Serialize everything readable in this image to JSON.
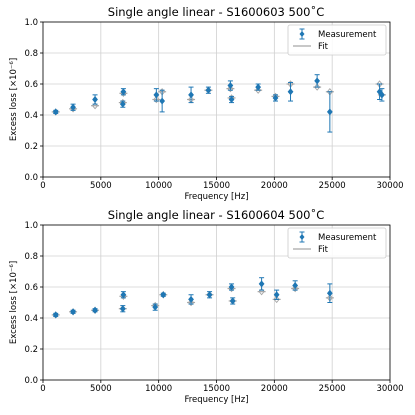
{
  "chart_data": [
    {
      "type": "scatter",
      "title": "Single angle linear - S1600603 500$^\\circ$C",
      "title_display": "Single angle linear - S1600603 500˚C",
      "xlabel": "Frequency [Hz]",
      "ylabel": "Excess loss [×10⁻⁶]",
      "xlim": [
        0,
        30000
      ],
      "ylim": [
        0.0,
        1.0
      ],
      "xticks": [
        0,
        5000,
        10000,
        15000,
        20000,
        25000,
        30000
      ],
      "yticks": [
        0.0,
        0.2,
        0.4,
        0.6,
        0.8,
        1.0
      ],
      "xtick_labels": [
        "0",
        "5000",
        "10000",
        "15000",
        "20000",
        "25000",
        "30000"
      ],
      "ytick_labels": [
        "0.0",
        "0.2",
        "0.4",
        "0.6",
        "0.8",
        "1.0"
      ],
      "grid": true,
      "legend_position": "top-right",
      "legend": [
        "Measurement",
        "Fit"
      ],
      "colors": {
        "measurement": "#1f77b4",
        "fit": "#a6a6a6"
      },
      "series": [
        {
          "name": "Measurement",
          "points": [
            {
              "x": 1100,
              "y": 0.42,
              "err": 0.01
            },
            {
              "x": 2600,
              "y": 0.45,
              "err": 0.02
            },
            {
              "x": 4500,
              "y": 0.5,
              "err": 0.03
            },
            {
              "x": 6900,
              "y": 0.47,
              "err": 0.02
            },
            {
              "x": 6950,
              "y": 0.55,
              "err": 0.02
            },
            {
              "x": 9800,
              "y": 0.53,
              "err": 0.04
            },
            {
              "x": 10300,
              "y": 0.49,
              "err": 0.07
            },
            {
              "x": 12800,
              "y": 0.53,
              "err": 0.05
            },
            {
              "x": 14300,
              "y": 0.56,
              "err": 0.02
            },
            {
              "x": 16200,
              "y": 0.59,
              "err": 0.03
            },
            {
              "x": 16300,
              "y": 0.5,
              "err": 0.02
            },
            {
              "x": 18600,
              "y": 0.58,
              "err": 0.02
            },
            {
              "x": 20100,
              "y": 0.51,
              "err": 0.02
            },
            {
              "x": 21400,
              "y": 0.55,
              "err": 0.06
            },
            {
              "x": 23700,
              "y": 0.62,
              "err": 0.04
            },
            {
              "x": 24800,
              "y": 0.42,
              "err": 0.13
            },
            {
              "x": 29100,
              "y": 0.55,
              "err": 0.05
            },
            {
              "x": 29300,
              "y": 0.53,
              "err": 0.04
            }
          ]
        },
        {
          "name": "Fit",
          "points": [
            {
              "x": 1100,
              "y": 0.42
            },
            {
              "x": 2600,
              "y": 0.44
            },
            {
              "x": 4500,
              "y": 0.46
            },
            {
              "x": 6900,
              "y": 0.48
            },
            {
              "x": 6950,
              "y": 0.54
            },
            {
              "x": 9800,
              "y": 0.5
            },
            {
              "x": 10300,
              "y": 0.55
            },
            {
              "x": 12800,
              "y": 0.5
            },
            {
              "x": 14300,
              "y": 0.56
            },
            {
              "x": 16200,
              "y": 0.57
            },
            {
              "x": 16300,
              "y": 0.51
            },
            {
              "x": 18600,
              "y": 0.56
            },
            {
              "x": 20100,
              "y": 0.52
            },
            {
              "x": 21400,
              "y": 0.6
            },
            {
              "x": 23700,
              "y": 0.58
            },
            {
              "x": 24800,
              "y": 0.55
            },
            {
              "x": 29100,
              "y": 0.6
            },
            {
              "x": 29300,
              "y": 0.53
            }
          ]
        }
      ]
    },
    {
      "type": "scatter",
      "title": "Single angle linear - S1600604 500$^\\circ$C",
      "title_display": "Single angle linear - S1600604 500˚C",
      "xlabel": "Frequency [Hz]",
      "ylabel": "Excess loss [×10⁻⁶]",
      "xlim": [
        0,
        30000
      ],
      "ylim": [
        0.0,
        1.0
      ],
      "xticks": [
        0,
        5000,
        10000,
        15000,
        20000,
        25000,
        30000
      ],
      "yticks": [
        0.0,
        0.2,
        0.4,
        0.6,
        0.8,
        1.0
      ],
      "xtick_labels": [
        "0",
        "5000",
        "10000",
        "15000",
        "20000",
        "25000",
        "30000"
      ],
      "ytick_labels": [
        "0.0",
        "0.2",
        "0.4",
        "0.6",
        "0.8",
        "1.0"
      ],
      "grid": true,
      "legend_position": "top-right",
      "legend": [
        "Measurement",
        "Fit"
      ],
      "colors": {
        "measurement": "#1f77b4",
        "fit": "#a6a6a6"
      },
      "series": [
        {
          "name": "Measurement",
          "points": [
            {
              "x": 1100,
              "y": 0.42,
              "err": 0.01
            },
            {
              "x": 2600,
              "y": 0.44,
              "err": 0.01
            },
            {
              "x": 4500,
              "y": 0.45,
              "err": 0.01
            },
            {
              "x": 6900,
              "y": 0.46,
              "err": 0.02
            },
            {
              "x": 6950,
              "y": 0.55,
              "err": 0.02
            },
            {
              "x": 9700,
              "y": 0.47,
              "err": 0.02
            },
            {
              "x": 10400,
              "y": 0.55,
              "err": 0.01
            },
            {
              "x": 12800,
              "y": 0.52,
              "err": 0.03
            },
            {
              "x": 14400,
              "y": 0.55,
              "err": 0.02
            },
            {
              "x": 16300,
              "y": 0.6,
              "err": 0.02
            },
            {
              "x": 16400,
              "y": 0.51,
              "err": 0.02
            },
            {
              "x": 18900,
              "y": 0.62,
              "err": 0.04
            },
            {
              "x": 20200,
              "y": 0.55,
              "err": 0.03
            },
            {
              "x": 21800,
              "y": 0.61,
              "err": 0.03
            },
            {
              "x": 24800,
              "y": 0.56,
              "err": 0.06
            }
          ]
        },
        {
          "name": "Fit",
          "points": [
            {
              "x": 1100,
              "y": 0.42
            },
            {
              "x": 2600,
              "y": 0.44
            },
            {
              "x": 4500,
              "y": 0.45
            },
            {
              "x": 6900,
              "y": 0.46
            },
            {
              "x": 6950,
              "y": 0.54
            },
            {
              "x": 9700,
              "y": 0.48
            },
            {
              "x": 10400,
              "y": 0.55
            },
            {
              "x": 12800,
              "y": 0.5
            },
            {
              "x": 14400,
              "y": 0.55
            },
            {
              "x": 16300,
              "y": 0.59
            },
            {
              "x": 16400,
              "y": 0.51
            },
            {
              "x": 18900,
              "y": 0.57
            },
            {
              "x": 20200,
              "y": 0.52
            },
            {
              "x": 21800,
              "y": 0.59
            },
            {
              "x": 24800,
              "y": 0.53
            }
          ]
        }
      ]
    }
  ]
}
